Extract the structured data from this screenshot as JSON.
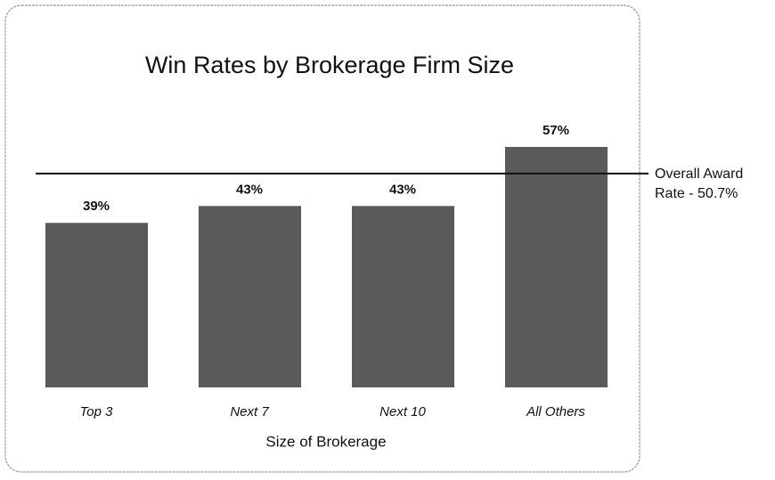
{
  "chart_data": {
    "type": "bar",
    "title": "Win Rates by Brokerage Firm Size",
    "x_label": "Size of Brokerage",
    "categories": [
      "Top 3",
      "Next 7",
      "Next 10",
      "All Others"
    ],
    "values": [
      39,
      43,
      43,
      57
    ],
    "value_labels": [
      "39%",
      "43%",
      "43%",
      "57%"
    ],
    "color": "#5a5a5a",
    "reference_line": {
      "value": 50.7,
      "label": [
        "Overall Award",
        "Rate - 50.7%"
      ]
    }
  }
}
